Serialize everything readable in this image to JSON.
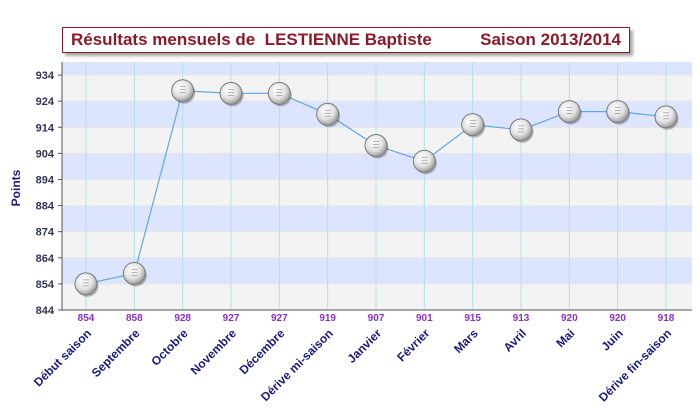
{
  "title": {
    "main": "Résultats mensuels de  LESTIENNE Baptiste",
    "season": "Saison 2013/2014"
  },
  "colors": {
    "title": "#8b1a2b",
    "band": "#dde4ff",
    "line": "#5ea7e8",
    "value_label": "#8b2fc9",
    "axis_label": "#1a1a80"
  },
  "chart_data": {
    "type": "line",
    "title": "Résultats mensuels de  LESTIENNE Baptiste",
    "subtitle": "Saison 2013/2014",
    "ylabel": "Points",
    "xlabel": "",
    "ylim": [
      844,
      939
    ],
    "yticks": [
      844,
      854,
      864,
      874,
      884,
      894,
      904,
      914,
      924,
      934
    ],
    "grid": true,
    "legend": "none",
    "categories": [
      "Début saison",
      "Septembre",
      "Octobre",
      "Novembre",
      "Décembre",
      "Dérive mi-saison",
      "Janvier",
      "Février",
      "Mars",
      "Avril",
      "Mai",
      "Juin",
      "Dérive fin-saison"
    ],
    "values": [
      854,
      858,
      928,
      927,
      927,
      919,
      907,
      901,
      915,
      913,
      920,
      920,
      918
    ]
  }
}
